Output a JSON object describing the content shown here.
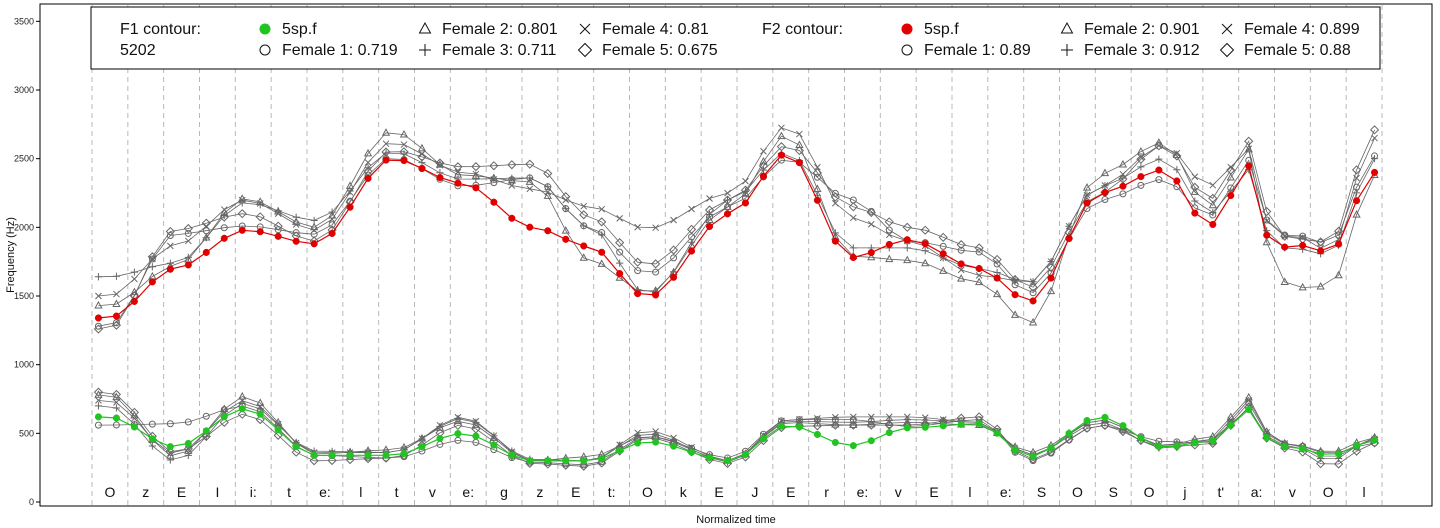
{
  "chart_data": {
    "type": "line",
    "title": "",
    "xlabel": "Normalized time",
    "ylabel": "Frequency (Hz)",
    "ylim": [
      0,
      3600
    ],
    "yticks": [
      0,
      500,
      1000,
      1500,
      2000,
      2500,
      3000,
      3500
    ],
    "xlim": [
      0,
      1
    ],
    "grid": "vertical-dashed",
    "legend_position": "top",
    "colors": {
      "f1": "#22c422",
      "f2": "#e00000",
      "speakers": "#666666"
    },
    "phones": [
      "O",
      "z",
      "E",
      "I",
      "i:",
      "t",
      "e:",
      "l",
      "t",
      "v",
      "e:",
      "g",
      "z",
      "E",
      "t:",
      "O",
      "k",
      "E",
      "J",
      "E",
      "r",
      "e:",
      "v",
      "E",
      "l",
      "e:",
      "S",
      "O",
      "S",
      "O",
      "j",
      "t'",
      "a:",
      "v",
      "O",
      "l"
    ],
    "legend": {
      "f1_title": "F1 contour:",
      "f1_id": "5202",
      "f2_title": "F2 contour:",
      "f1_entries": [
        {
          "marker": "filled-green",
          "label": "5sp.f"
        },
        {
          "marker": "circle",
          "label": "Female 1: 0.719"
        },
        {
          "marker": "triangle",
          "label": "Female 2: 0.801"
        },
        {
          "marker": "plus",
          "label": "Female 3: 0.711"
        },
        {
          "marker": "cross",
          "label": "Female 4: 0.81"
        },
        {
          "marker": "diamond",
          "label": "Female 5: 0.675"
        }
      ],
      "f2_entries": [
        {
          "marker": "filled-red",
          "label": "5sp.f"
        },
        {
          "marker": "circle",
          "label": "Female 1: 0.89"
        },
        {
          "marker": "triangle",
          "label": "Female 2: 0.901"
        },
        {
          "marker": "plus",
          "label": "Female 3: 0.912"
        },
        {
          "marker": "cross",
          "label": "Female 4: 0.899"
        },
        {
          "marker": "diamond",
          "label": "Female 5: 0.88"
        }
      ]
    },
    "series": [
      {
        "formant": "F2",
        "name": "5sp.f",
        "marker": "filled",
        "x": [
          0.008,
          0.06,
          0.115,
          0.17,
          0.23,
          0.285,
          0.34,
          0.385,
          0.43,
          0.495,
          0.54,
          0.59,
          0.635,
          0.69,
          0.73,
          0.785,
          0.835,
          0.87,
          0.905,
          0.92,
          0.935,
          0.965,
          1.0
        ],
        "y": [
          1340,
          1700,
          1980,
          1880,
          2500,
          2320,
          2000,
          1860,
          1490,
          2100,
          2540,
          1780,
          1910,
          1700,
          1460,
          2250,
          2420,
          2010,
          2460,
          1800,
          1880,
          1820,
          2400
        ]
      },
      {
        "formant": "F2",
        "name": "Female 1: 0.89",
        "marker": "circle",
        "x": [
          0.008,
          0.06,
          0.115,
          0.17,
          0.23,
          0.285,
          0.34,
          0.385,
          0.43,
          0.495,
          0.54,
          0.59,
          0.635,
          0.69,
          0.73,
          0.785,
          0.835,
          0.87,
          0.905,
          0.92,
          0.935,
          0.965,
          1.0
        ],
        "y": [
          1280,
          1950,
          2010,
          1950,
          2510,
          2300,
          2360,
          2000,
          1660,
          2150,
          2500,
          2200,
          1900,
          1820,
          1520,
          2200,
          2350,
          2080,
          2500,
          1930,
          1950,
          1880,
          2520
        ]
      },
      {
        "formant": "F2",
        "name": "Female 2: 0.901",
        "marker": "triangle",
        "x": [
          0.008,
          0.06,
          0.115,
          0.17,
          0.23,
          0.285,
          0.34,
          0.385,
          0.43,
          0.495,
          0.54,
          0.59,
          0.635,
          0.69,
          0.73,
          0.785,
          0.835,
          0.87,
          0.905,
          0.92,
          0.935,
          0.965,
          1.0
        ],
        "y": [
          1430,
          1720,
          2210,
          2000,
          2700,
          2380,
          2330,
          1760,
          1520,
          2150,
          2680,
          1790,
          1760,
          1600,
          1300,
          2390,
          2620,
          2150,
          2580,
          1700,
          1560,
          1570,
          2380
        ]
      },
      {
        "formant": "F2",
        "name": "Female 3: 0.912",
        "marker": "plus",
        "x": [
          0.008,
          0.06,
          0.115,
          0.17,
          0.23,
          0.285,
          0.34,
          0.385,
          0.43,
          0.495,
          0.54,
          0.59,
          0.635,
          0.69,
          0.73,
          0.785,
          0.835,
          0.87,
          0.905,
          0.92,
          0.935,
          0.965,
          1.0
        ],
        "y": [
          1640,
          1740,
          2180,
          2050,
          2550,
          2350,
          2360,
          2000,
          1510,
          2200,
          2550,
          1850,
          1850,
          1700,
          1600,
          2300,
          2500,
          2100,
          2430,
          1850,
          1850,
          1800,
          2500
        ]
      },
      {
        "formant": "F2",
        "name": "Female 4: 0.899",
        "marker": "cross",
        "x": [
          0.008,
          0.06,
          0.115,
          0.17,
          0.23,
          0.285,
          0.34,
          0.385,
          0.43,
          0.495,
          0.54,
          0.59,
          0.635,
          0.69,
          0.73,
          0.785,
          0.835,
          0.87,
          0.905,
          0.92,
          0.935,
          0.965,
          1.0
        ],
        "y": [
          1500,
          1870,
          2200,
          1980,
          2620,
          2400,
          2280,
          2150,
          1990,
          2250,
          2740,
          2070,
          1900,
          1650,
          1600,
          2300,
          2600,
          2300,
          2580,
          1900,
          1950,
          1830,
          2650
        ]
      },
      {
        "formant": "F2",
        "name": "Female 5: 0.88",
        "marker": "diamond",
        "x": [
          0.008,
          0.06,
          0.115,
          0.17,
          0.23,
          0.285,
          0.34,
          0.385,
          0.43,
          0.495,
          0.54,
          0.59,
          0.635,
          0.69,
          0.73,
          0.785,
          0.835,
          0.87,
          0.905,
          0.92,
          0.935,
          0.965,
          1.0
        ],
        "y": [
          1260,
          1980,
          2100,
          1900,
          2560,
          2440,
          2460,
          2080,
          1720,
          2200,
          2600,
          2150,
          2000,
          1850,
          1560,
          2250,
          2600,
          2200,
          2640,
          1970,
          1920,
          1890,
          2710
        ]
      },
      {
        "formant": "F1",
        "name": "5sp.f",
        "marker": "filled",
        "x": [
          0.008,
          0.06,
          0.115,
          0.17,
          0.23,
          0.285,
          0.34,
          0.385,
          0.43,
          0.495,
          0.54,
          0.59,
          0.635,
          0.69,
          0.73,
          0.785,
          0.835,
          0.87,
          0.905,
          0.92,
          0.935,
          0.965,
          1.0
        ],
        "y": [
          620,
          400,
          680,
          340,
          340,
          500,
          300,
          300,
          440,
          300,
          560,
          410,
          540,
          570,
          330,
          620,
          400,
          440,
          680,
          410,
          400,
          340,
          450
        ]
      },
      {
        "formant": "F1",
        "name": "Female 1: 0.719",
        "marker": "circle",
        "x": [
          0.008,
          0.06,
          0.115,
          0.17,
          0.23,
          0.285,
          0.34,
          0.385,
          0.43,
          0.495,
          0.54,
          0.59,
          0.635,
          0.69,
          0.73,
          0.785,
          0.835,
          0.87,
          0.905,
          0.92,
          0.935,
          0.965,
          1.0
        ],
        "y": [
          560,
          570,
          700,
          340,
          320,
          450,
          290,
          270,
          480,
          320,
          600,
          600,
          550,
          600,
          300,
          560,
          440,
          430,
          730,
          430,
          420,
          350,
          430
        ]
      },
      {
        "formant": "F1",
        "name": "Female 2: 0.801",
        "marker": "triangle",
        "x": [
          0.008,
          0.06,
          0.115,
          0.17,
          0.23,
          0.285,
          0.34,
          0.385,
          0.43,
          0.495,
          0.54,
          0.59,
          0.635,
          0.69,
          0.73,
          0.785,
          0.835,
          0.87,
          0.905,
          0.92,
          0.935,
          0.965,
          1.0
        ],
        "y": [
          780,
          330,
          770,
          350,
          380,
          590,
          300,
          330,
          480,
          300,
          580,
          560,
          580,
          560,
          360,
          600,
          410,
          470,
          770,
          440,
          420,
          360,
          470
        ]
      },
      {
        "formant": "F1",
        "name": "Female 3: 0.711",
        "marker": "plus",
        "x": [
          0.008,
          0.06,
          0.115,
          0.17,
          0.23,
          0.285,
          0.34,
          0.385,
          0.43,
          0.495,
          0.54,
          0.59,
          0.635,
          0.69,
          0.73,
          0.785,
          0.835,
          0.87,
          0.905,
          0.92,
          0.935,
          0.965,
          1.0
        ],
        "y": [
          700,
          300,
          720,
          370,
          360,
          610,
          310,
          300,
          500,
          290,
          590,
          580,
          600,
          580,
          340,
          580,
          390,
          450,
          690,
          420,
          410,
          300,
          470
        ]
      },
      {
        "formant": "F1",
        "name": "Female 4: 0.81",
        "marker": "cross",
        "x": [
          0.008,
          0.06,
          0.115,
          0.17,
          0.23,
          0.285,
          0.34,
          0.385,
          0.43,
          0.495,
          0.54,
          0.59,
          0.635,
          0.69,
          0.73,
          0.785,
          0.835,
          0.87,
          0.905,
          0.92,
          0.935,
          0.965,
          1.0
        ],
        "y": [
          740,
          350,
          740,
          360,
          360,
          620,
          300,
          300,
          520,
          300,
          600,
          620,
          620,
          580,
          340,
          600,
          410,
          450,
          750,
          440,
          420,
          320,
          460
        ]
      },
      {
        "formant": "F1",
        "name": "Female 5: 0.675",
        "marker": "diamond",
        "x": [
          0.008,
          0.06,
          0.115,
          0.17,
          0.23,
          0.285,
          0.34,
          0.385,
          0.43,
          0.495,
          0.54,
          0.59,
          0.635,
          0.69,
          0.73,
          0.785,
          0.835,
          0.87,
          0.905,
          0.92,
          0.935,
          0.965,
          1.0
        ],
        "y": [
          800,
          360,
          640,
          300,
          320,
          560,
          280,
          260,
          470,
          280,
          550,
          560,
          560,
          620,
          310,
          560,
          400,
          420,
          700,
          400,
          390,
          260,
          430
        ]
      }
    ]
  }
}
